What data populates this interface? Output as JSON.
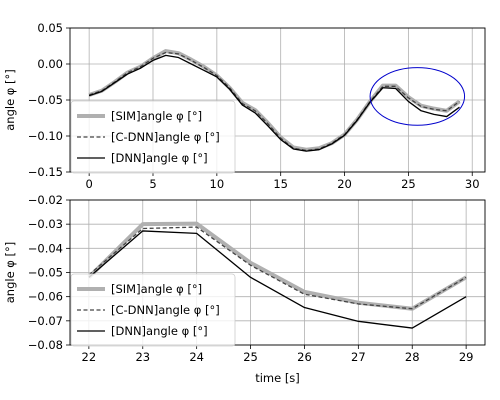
{
  "chart_data": [
    {
      "type": "line",
      "title": "",
      "xlabel": "",
      "ylabel": "angle φ [°]",
      "xlim": [
        -1.5,
        31
      ],
      "ylim": [
        -0.15,
        0.05
      ],
      "xticks": [
        0,
        5,
        10,
        15,
        20,
        25,
        30
      ],
      "xtick_labels": [
        "0",
        "5",
        "10",
        "15",
        "20",
        "25",
        "30"
      ],
      "yticks": [
        -0.15,
        -0.1,
        -0.05,
        0.0,
        0.05
      ],
      "ytick_labels": [
        "−0.15",
        "−0.10",
        "−0.05",
        "0.00",
        "0.05"
      ],
      "grid": true,
      "legend_position": "lower-left",
      "annotation": {
        "type": "ellipse",
        "center": [
          25.7,
          -0.045
        ],
        "radius": [
          3.7,
          0.04
        ],
        "color": "#0000cc"
      },
      "x": [
        0,
        1,
        2,
        3,
        4,
        5,
        6,
        7,
        8,
        9,
        10,
        11,
        12,
        13,
        14,
        15,
        16,
        17,
        18,
        19,
        20,
        21,
        22,
        23,
        24,
        25,
        26,
        27,
        28,
        29
      ],
      "series": [
        {
          "name": "[SIM]angle φ [°]",
          "color": "#b0b0b0",
          "style": "solid-thick",
          "values": [
            -0.043,
            -0.037,
            -0.025,
            -0.012,
            -0.004,
            0.008,
            0.018,
            0.015,
            0.006,
            -0.004,
            -0.016,
            -0.033,
            -0.054,
            -0.064,
            -0.082,
            -0.102,
            -0.116,
            -0.119,
            -0.117,
            -0.11,
            -0.098,
            -0.077,
            -0.052,
            -0.03,
            -0.03,
            -0.046,
            -0.058,
            -0.062,
            -0.065,
            -0.052
          ]
        },
        {
          "name": "[C-DNN]angle φ [°]",
          "color": "#444444",
          "style": "dashed",
          "values": [
            -0.043,
            -0.037,
            -0.025,
            -0.012,
            -0.004,
            0.008,
            0.016,
            0.014,
            0.005,
            -0.005,
            -0.016,
            -0.033,
            -0.055,
            -0.065,
            -0.083,
            -0.103,
            -0.117,
            -0.12,
            -0.118,
            -0.11,
            -0.098,
            -0.077,
            -0.052,
            -0.031,
            -0.031,
            -0.047,
            -0.059,
            -0.063,
            -0.065,
            -0.052
          ]
        },
        {
          "name": "[DNN]angle φ [°]",
          "color": "#000000",
          "style": "solid",
          "values": [
            -0.044,
            -0.038,
            -0.026,
            -0.014,
            -0.006,
            0.005,
            0.012,
            0.009,
            0.0,
            -0.009,
            -0.018,
            -0.035,
            -0.057,
            -0.068,
            -0.086,
            -0.105,
            -0.118,
            -0.121,
            -0.119,
            -0.111,
            -0.099,
            -0.078,
            -0.053,
            -0.033,
            -0.034,
            -0.052,
            -0.065,
            -0.07,
            -0.073,
            -0.06
          ]
        }
      ]
    },
    {
      "type": "line",
      "title": "",
      "xlabel": "time [s]",
      "ylabel": "angle φ [°]",
      "xlim": [
        21.65,
        29.35
      ],
      "ylim": [
        -0.08,
        -0.02
      ],
      "xticks": [
        22,
        23,
        24,
        25,
        26,
        27,
        28,
        29
      ],
      "xtick_labels": [
        "22",
        "23",
        "24",
        "25",
        "26",
        "27",
        "28",
        "29"
      ],
      "yticks": [
        -0.08,
        -0.07,
        -0.06,
        -0.05,
        -0.04,
        -0.03,
        -0.02
      ],
      "ytick_labels": [
        "−0.08",
        "−0.07",
        "−0.06",
        "−0.05",
        "−0.04",
        "−0.03",
        "−0.02"
      ],
      "grid": true,
      "legend_position": "lower-left",
      "x": [
        22,
        23,
        24,
        25,
        26,
        27,
        28,
        29
      ],
      "series": [
        {
          "name": "[SIM]angle φ [°]",
          "color": "#b0b0b0",
          "style": "solid-thick",
          "values": [
            -0.052,
            -0.03,
            -0.0298,
            -0.046,
            -0.058,
            -0.0625,
            -0.065,
            -0.052
          ]
        },
        {
          "name": "[C-DNN]angle φ [°]",
          "color": "#444444",
          "style": "dashed",
          "values": [
            -0.051,
            -0.0318,
            -0.0312,
            -0.047,
            -0.059,
            -0.063,
            -0.065,
            -0.052
          ]
        },
        {
          "name": "[DNN]angle φ [°]",
          "color": "#000000",
          "style": "solid",
          "values": [
            -0.052,
            -0.0328,
            -0.0338,
            -0.052,
            -0.0645,
            -0.0702,
            -0.073,
            -0.06
          ]
        }
      ]
    }
  ]
}
